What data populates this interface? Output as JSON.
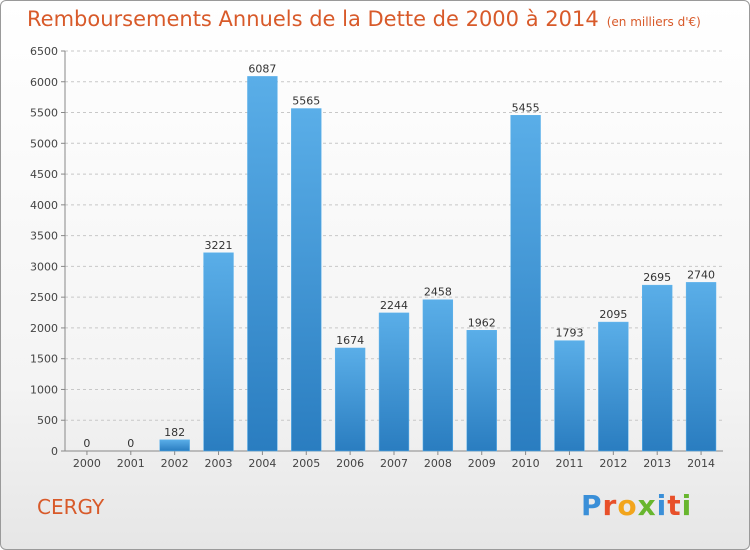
{
  "header": {
    "title": "Remboursements Annuels de la Dette de 2000 à 2014",
    "subtitle": "(en milliers d'€)"
  },
  "footer": {
    "city": "CERGY",
    "logo": "Proxiti",
    "logo_colors": [
      "#3a8fd8",
      "#e8502a",
      "#f2a51c",
      "#68b62e",
      "#3a8fd8",
      "#e8502a",
      "#68b62e"
    ]
  },
  "colors": {
    "bar_top": "#5aaee8",
    "bar_bottom": "#2a7dc0",
    "grid": "#c8c8c8",
    "title": "#d85a2a"
  },
  "chart_data": {
    "type": "bar",
    "title": "Remboursements Annuels de la Dette de 2000 à 2014",
    "xlabel": "",
    "ylabel": "",
    "ylim": [
      0,
      6500
    ],
    "yticks": [
      0,
      500,
      1000,
      1500,
      2000,
      2500,
      3000,
      3500,
      4000,
      4500,
      5000,
      5500,
      6000,
      6500
    ],
    "grid": true,
    "categories": [
      "2000",
      "2001",
      "2002",
      "2003",
      "2004",
      "2005",
      "2006",
      "2007",
      "2008",
      "2009",
      "2010",
      "2011",
      "2012",
      "2013",
      "2014"
    ],
    "values": [
      0,
      0,
      182,
      3221,
      6087,
      5565,
      1674,
      2244,
      2458,
      1962,
      5455,
      1793,
      2095,
      2695,
      2740
    ]
  }
}
